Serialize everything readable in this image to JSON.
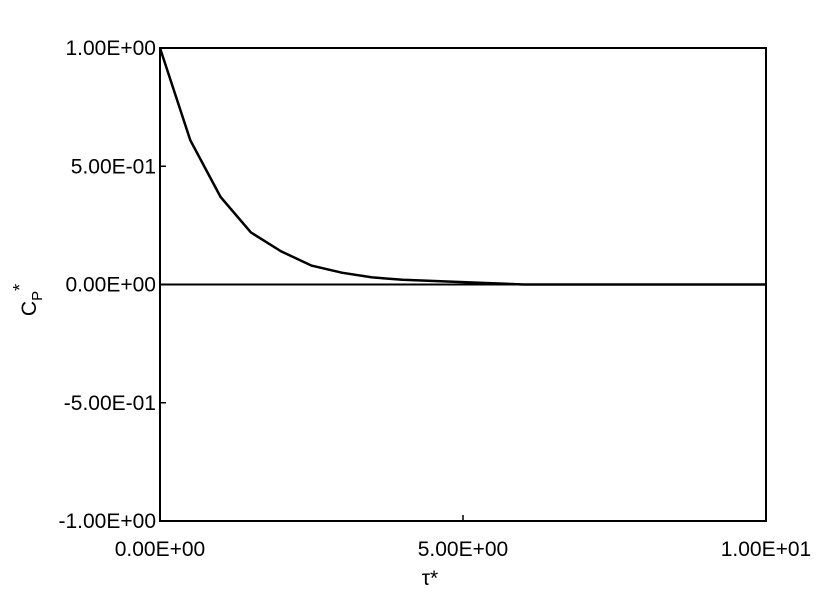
{
  "chart_data": {
    "type": "line",
    "x": [
      0,
      0.5,
      1,
      1.5,
      2,
      2.5,
      3,
      3.5,
      4,
      5,
      6,
      7,
      8,
      9,
      10
    ],
    "values": [
      1,
      0.61,
      0.37,
      0.22,
      0.14,
      0.08,
      0.05,
      0.03,
      0.02,
      0.01,
      0,
      0,
      0,
      0,
      0
    ],
    "color": "#000000",
    "xlim": [
      0,
      10
    ],
    "xticks": [
      {
        "value": 0,
        "label": "0.00E+00"
      },
      {
        "value": 5,
        "label": "5.00E+00"
      },
      {
        "value": 10,
        "label": "1.00E+01"
      }
    ],
    "ylim": [
      -1,
      1
    ],
    "yticks": [
      {
        "value": 1,
        "label": "1.00E+00"
      },
      {
        "value": 0.5,
        "label": "5.00E-01"
      },
      {
        "value": 0,
        "label": "0.00E+00"
      },
      {
        "value": -0.5,
        "label": "-5.00E-01"
      },
      {
        "value": -1,
        "label": "-1.00E+00"
      }
    ],
    "xlabel": "τ*",
    "ylabel": {
      "base": "C",
      "sub": "P",
      "sup": "*"
    },
    "zero_line": true,
    "grid": false
  }
}
